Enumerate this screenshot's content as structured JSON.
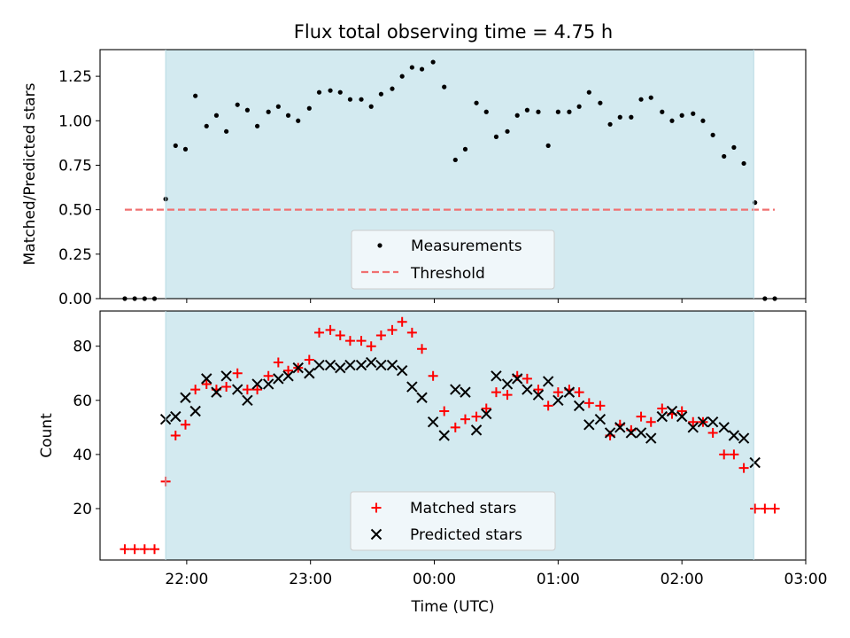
{
  "chart_data": [
    {
      "type": "scatter",
      "title": "Flux total observing time = 4.75 h",
      "ylabel": "Matched/Predicted stars",
      "xlabel": "",
      "x_unit": "hours since 00:00 UTC",
      "xlim": [
        -2.7,
        3.0
      ],
      "ylim": [
        0.0,
        1.4
      ],
      "yticks": [
        0.0,
        0.25,
        0.5,
        0.75,
        1.0,
        1.25
      ],
      "ytick_labels": [
        "0.00",
        "0.25",
        "0.50",
        "0.75",
        "1.00",
        "1.25"
      ],
      "xticks": [
        -2,
        -1,
        0,
        1,
        2,
        3
      ],
      "observing_window": [
        -2.17,
        2.58
      ],
      "observing_window_color": "#d3eaf0",
      "legend_position": "lower center",
      "threshold": {
        "name": "Threshold",
        "value": 0.5,
        "x_range": [
          -2.5,
          2.75
        ],
        "color": "#f07070",
        "style": "dashed"
      },
      "series": [
        {
          "name": "Measurements",
          "color": "#000000",
          "marker": "dot",
          "x": [
            -2.5,
            -2.42,
            -2.34,
            -2.26,
            -2.17,
            -2.09,
            -2.01,
            -1.93,
            -1.84,
            -1.76,
            -1.68,
            -1.59,
            -1.51,
            -1.43,
            -1.34,
            -1.26,
            -1.18,
            -1.1,
            -1.01,
            -0.93,
            -0.84,
            -0.76,
            -0.68,
            -0.59,
            -0.51,
            -0.43,
            -0.34,
            -0.26,
            -0.18,
            -0.1,
            -0.01,
            0.08,
            0.17,
            0.25,
            0.34,
            0.42,
            0.5,
            0.59,
            0.67,
            0.75,
            0.84,
            0.92,
            1.0,
            1.09,
            1.17,
            1.25,
            1.34,
            1.42,
            1.5,
            1.59,
            1.67,
            1.75,
            1.84,
            1.92,
            2.0,
            2.09,
            2.17,
            2.25,
            2.34,
            2.42,
            2.5,
            2.59,
            2.67,
            2.75
          ],
          "values": [
            0.0,
            0.0,
            0.0,
            0.0,
            0.56,
            0.86,
            0.84,
            1.14,
            0.97,
            1.03,
            0.94,
            1.09,
            1.06,
            0.97,
            1.05,
            1.08,
            1.03,
            1.0,
            1.07,
            1.16,
            1.17,
            1.16,
            1.12,
            1.12,
            1.08,
            1.15,
            1.18,
            1.25,
            1.3,
            1.29,
            1.33,
            1.19,
            0.78,
            0.84,
            1.1,
            1.05,
            0.91,
            0.94,
            1.03,
            1.06,
            1.05,
            0.86,
            1.05,
            1.05,
            1.08,
            1.16,
            1.1,
            0.98,
            1.02,
            1.02,
            1.12,
            1.13,
            1.05,
            1.0,
            1.03,
            1.04,
            1.0,
            0.92,
            0.8,
            0.85,
            0.76,
            0.54,
            0.0,
            0.0
          ]
        }
      ]
    },
    {
      "type": "scatter",
      "title": "",
      "ylabel": "Count",
      "xlabel": "Time (UTC)",
      "x_unit": "hours since 00:00 UTC",
      "xlim": [
        -2.7,
        3.0
      ],
      "ylim": [
        1,
        93
      ],
      "yticks": [
        20,
        40,
        60,
        80
      ],
      "ytick_labels": [
        "20",
        "40",
        "60",
        "80"
      ],
      "xticks": [
        -2,
        -1,
        0,
        1,
        2,
        3
      ],
      "xtick_labels": [
        "22:00",
        "23:00",
        "00:00",
        "01:00",
        "02:00",
        "03:00"
      ],
      "observing_window": [
        -2.17,
        2.58
      ],
      "observing_window_color": "#d3eaf0",
      "legend_position": "lower center",
      "series": [
        {
          "name": "Matched stars",
          "color": "#ff0000",
          "marker": "plus",
          "x": [
            -2.5,
            -2.42,
            -2.34,
            -2.26,
            -2.17,
            -2.09,
            -2.01,
            -1.93,
            -1.84,
            -1.76,
            -1.68,
            -1.59,
            -1.51,
            -1.43,
            -1.34,
            -1.26,
            -1.18,
            -1.1,
            -1.01,
            -0.93,
            -0.84,
            -0.76,
            -0.68,
            -0.59,
            -0.51,
            -0.43,
            -0.34,
            -0.26,
            -0.18,
            -0.1,
            -0.01,
            0.08,
            0.17,
            0.25,
            0.34,
            0.42,
            0.5,
            0.59,
            0.67,
            0.75,
            0.84,
            0.92,
            1.0,
            1.09,
            1.17,
            1.25,
            1.34,
            1.42,
            1.5,
            1.59,
            1.67,
            1.75,
            1.84,
            1.92,
            2.0,
            2.09,
            2.17,
            2.25,
            2.34,
            2.42,
            2.5,
            2.59,
            2.67,
            2.75
          ],
          "values": [
            5,
            5,
            5,
            5,
            30,
            47,
            51,
            64,
            66,
            64,
            65,
            70,
            64,
            64,
            69,
            74,
            71,
            72,
            75,
            85,
            86,
            84,
            82,
            82,
            80,
            84,
            86,
            89,
            85,
            79,
            69,
            56,
            50,
            53,
            54,
            57,
            63,
            62,
            69,
            68,
            64,
            58,
            63,
            64,
            63,
            59,
            58,
            47,
            51,
            49,
            54,
            52,
            57,
            55,
            56,
            52,
            52,
            48,
            40,
            40,
            35,
            20,
            20,
            20
          ]
        },
        {
          "name": "Predicted stars",
          "color": "#000000",
          "marker": "x",
          "x": [
            -2.17,
            -2.09,
            -2.01,
            -1.93,
            -1.84,
            -1.76,
            -1.68,
            -1.59,
            -1.51,
            -1.43,
            -1.34,
            -1.26,
            -1.18,
            -1.1,
            -1.01,
            -0.93,
            -0.84,
            -0.76,
            -0.68,
            -0.59,
            -0.51,
            -0.43,
            -0.34,
            -0.26,
            -0.18,
            -0.1,
            -0.01,
            0.08,
            0.17,
            0.25,
            0.34,
            0.42,
            0.5,
            0.59,
            0.67,
            0.75,
            0.84,
            0.92,
            1.0,
            1.09,
            1.17,
            1.25,
            1.34,
            1.42,
            1.5,
            1.59,
            1.67,
            1.75,
            1.84,
            1.92,
            2.0,
            2.09,
            2.17,
            2.25,
            2.34,
            2.42,
            2.5,
            2.59
          ],
          "values": [
            53,
            54,
            61,
            56,
            68,
            63,
            69,
            64,
            60,
            66,
            66,
            68,
            69,
            72,
            70,
            73,
            73,
            72,
            73,
            73,
            74,
            73,
            73,
            71,
            65,
            61,
            52,
            47,
            64,
            63,
            49,
            55,
            69,
            66,
            68,
            64,
            62,
            67,
            60,
            63,
            58,
            51,
            53,
            48,
            50,
            48,
            48,
            46,
            54,
            56,
            54,
            50,
            52,
            52,
            50,
            47,
            46,
            37
          ]
        }
      ]
    }
  ]
}
